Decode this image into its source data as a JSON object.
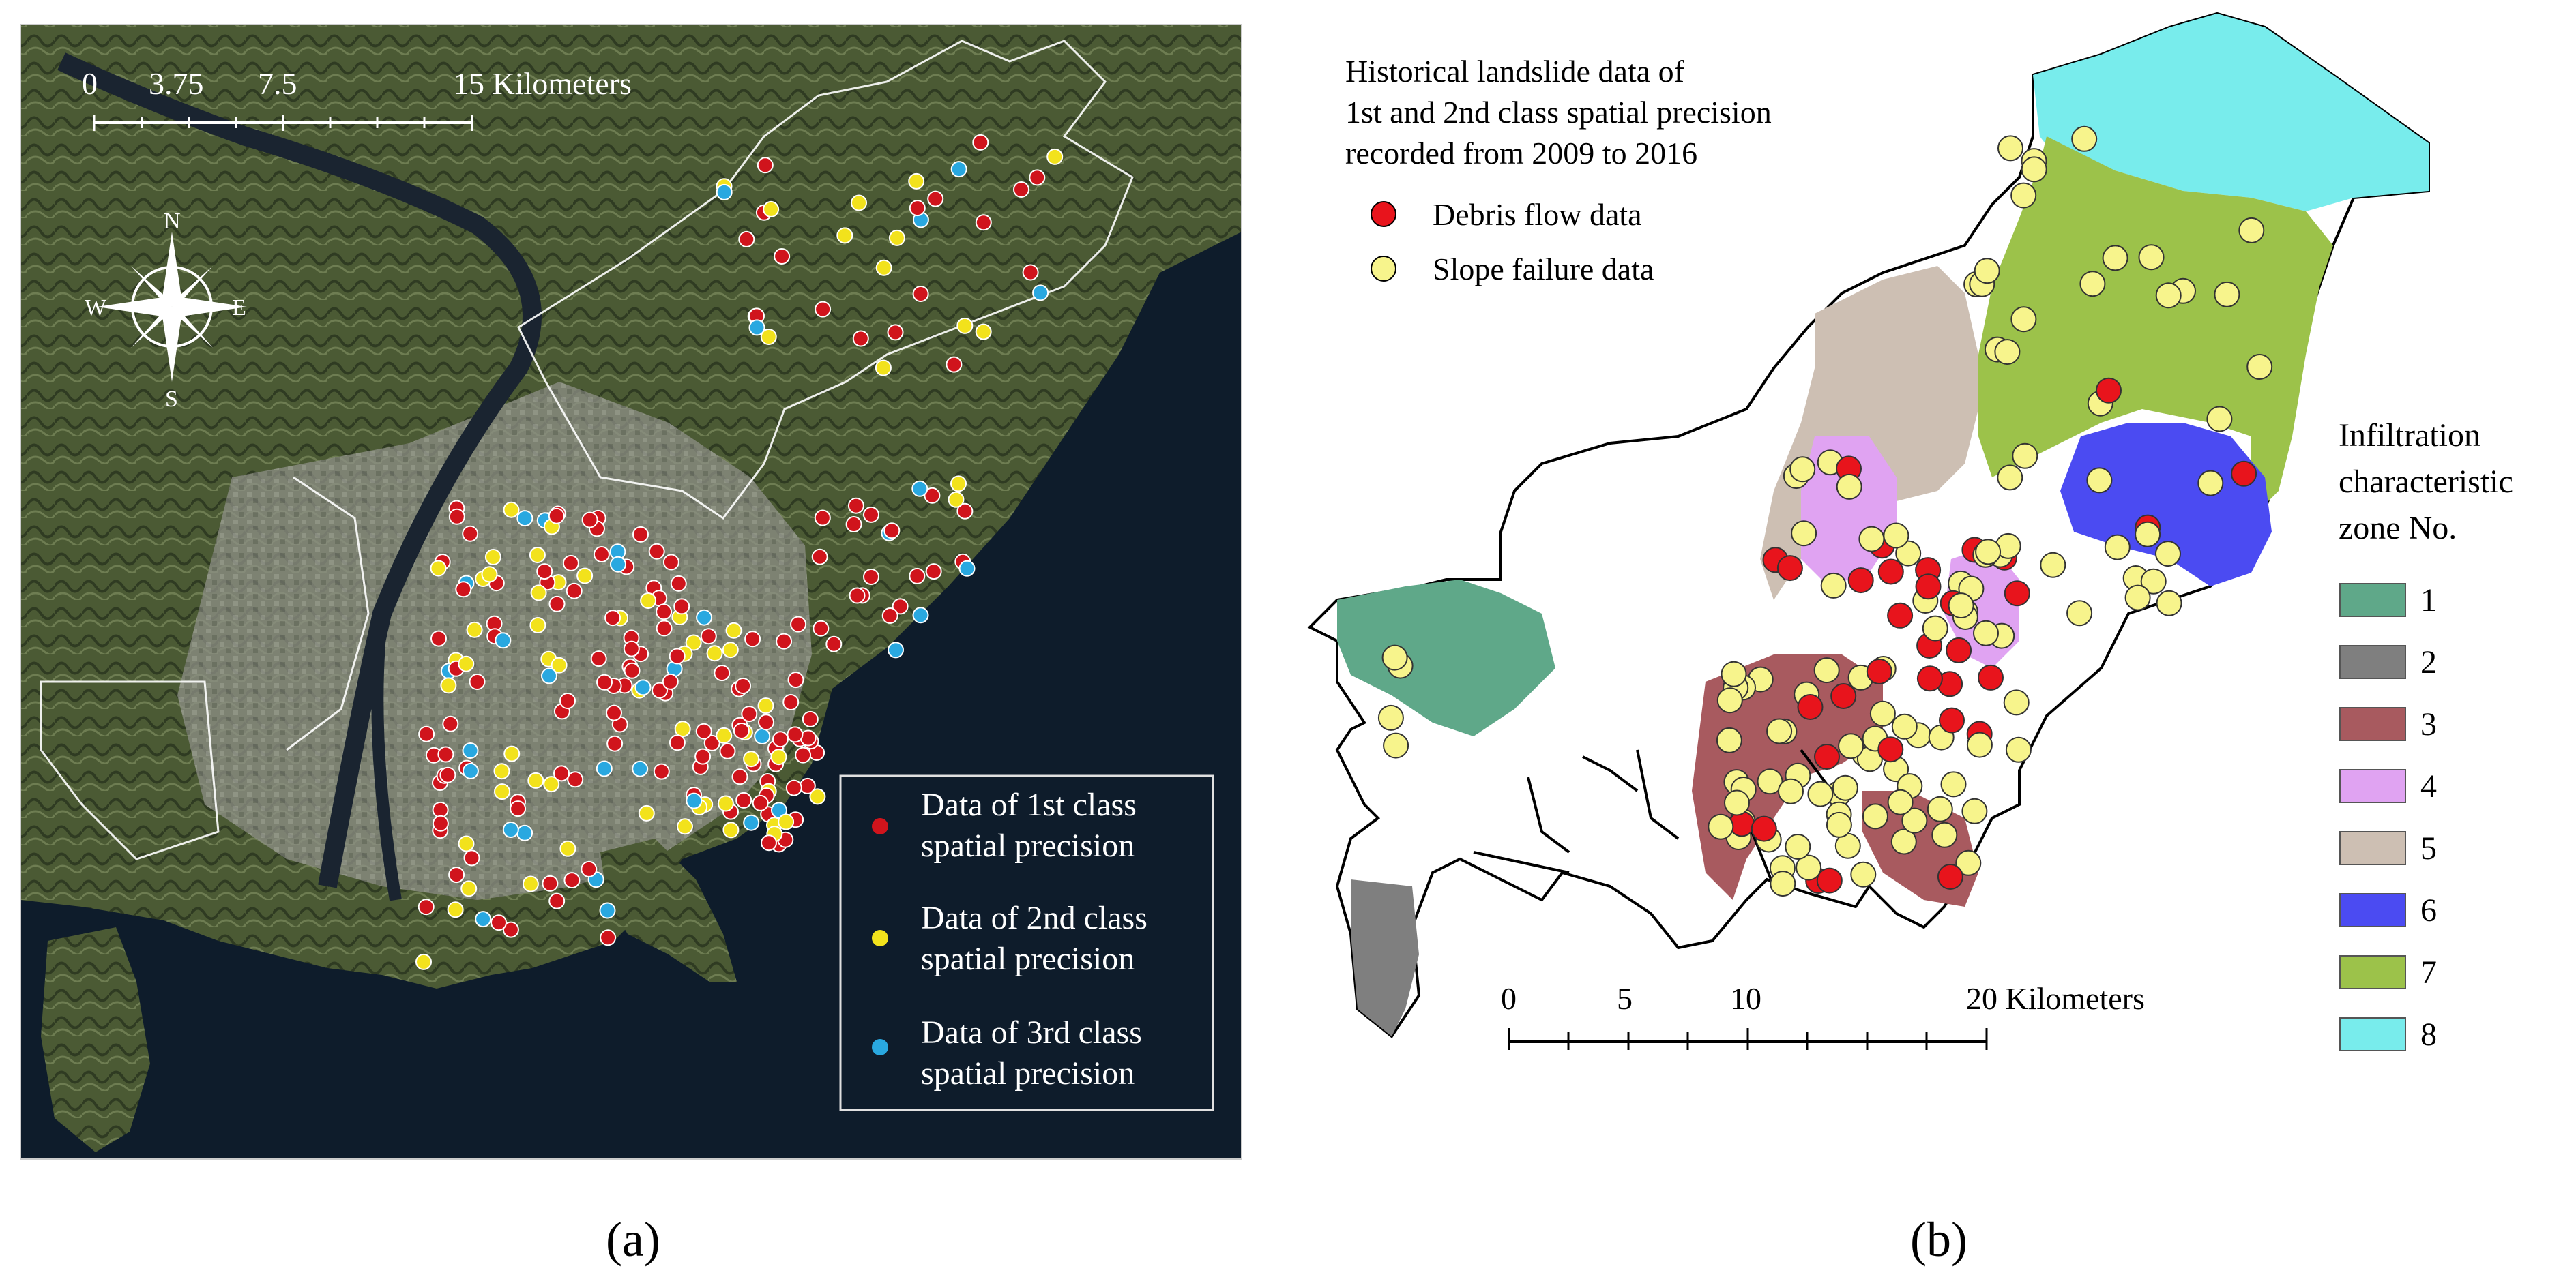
{
  "colors": {
    "sea": "#0d1b2a",
    "panel_b_fill_land": "#ffffff",
    "debris_red": "#e8141c",
    "slope_yellow": "#f7f48c",
    "class1_red": "#d0141c",
    "class2_yellow": "#f2e21c",
    "class3_blue": "#29a8e0"
  },
  "panel_a": {
    "scale_labels": [
      "0",
      "3.75",
      "7.5",
      "15 Kilometers"
    ],
    "compass": {
      "n": "N",
      "s": "S",
      "e": "E",
      "w": "W"
    },
    "legend": [
      {
        "line1": "Data of 1st class",
        "line2": "spatial precision",
        "color": "#d0141c"
      },
      {
        "line1": "Data of 2nd class",
        "line2": "spatial precision",
        "color": "#f2e21c"
      },
      {
        "line1": "Data of 3rd class",
        "line2": "spatial precision",
        "color": "#29a8e0"
      }
    ],
    "caption": "(a)"
  },
  "panel_b": {
    "title_lines": [
      "Historical landslide data of",
      "1st and 2nd class spatial precision",
      "recorded from 2009 to 2016"
    ],
    "point_legend": [
      {
        "label": "Debris flow data",
        "color": "#e8141c"
      },
      {
        "label": "Slope failure data",
        "color": "#f7f48c"
      }
    ],
    "zone_legend_title": [
      "Infiltration",
      "characteristic",
      "zone No."
    ],
    "zones": [
      {
        "no": "1",
        "color": "#5fa889"
      },
      {
        "no": "2",
        "color": "#7f7f7f"
      },
      {
        "no": "3",
        "color": "#a85a5f"
      },
      {
        "no": "4",
        "color": "#e0a3f2"
      },
      {
        "no": "5",
        "color": "#cdbfb3"
      },
      {
        "no": "6",
        "color": "#4b4bf2"
      },
      {
        "no": "7",
        "color": "#9cc24a"
      },
      {
        "no": "8",
        "color": "#78ecec"
      }
    ],
    "scale_labels": [
      "0",
      "5",
      "10",
      "20 Kilometers"
    ],
    "caption": "(b)"
  }
}
